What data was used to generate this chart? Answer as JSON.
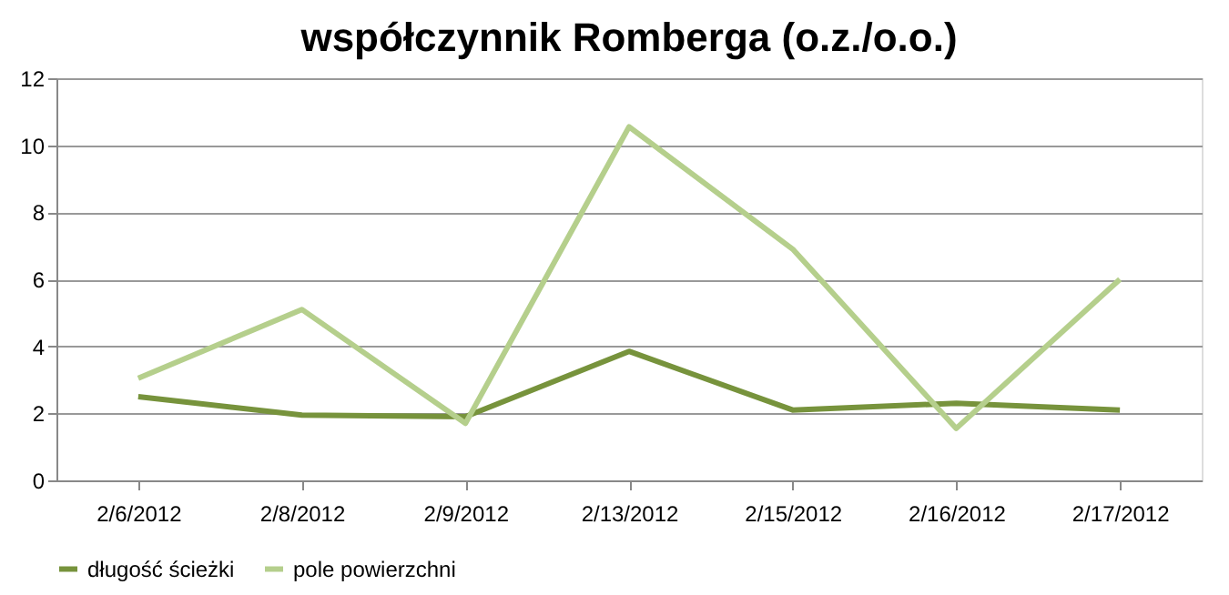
{
  "chart_data": {
    "type": "line",
    "title": "współczynnik Romberga  (o.z./o.o.)",
    "categories": [
      "2/6/2012",
      "2/8/2012",
      "2/9/2012",
      "2/13/2012",
      "2/15/2012",
      "2/16/2012",
      "2/17/2012"
    ],
    "series": [
      {
        "name": "długość ścieżki",
        "color": "#77933c",
        "values": [
          2.5,
          1.95,
          1.9,
          3.85,
          2.1,
          2.3,
          2.1
        ]
      },
      {
        "name": "pole powierzchni",
        "color": "#b5cf8c",
        "values": [
          3.05,
          5.1,
          1.7,
          10.55,
          6.9,
          1.55,
          6.0
        ]
      }
    ],
    "ylim": [
      0,
      12
    ],
    "yticks": [
      0,
      2,
      4,
      6,
      8,
      10,
      12
    ],
    "grid": "y",
    "legend": "bottom",
    "marker": "none",
    "line_style": "solid"
  }
}
